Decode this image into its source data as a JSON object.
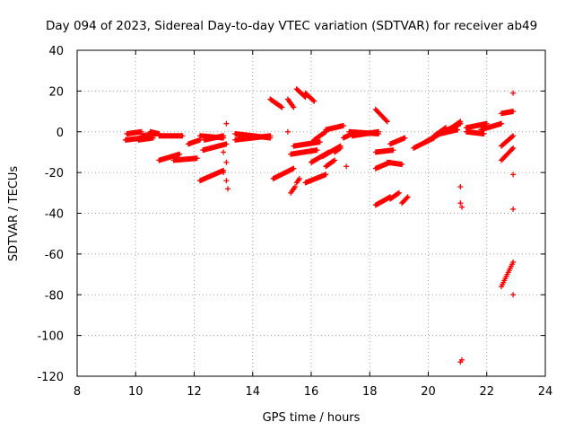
{
  "chart_data": {
    "type": "scatter",
    "title": "Day 094 of 2023, Sidereal Day-to-day VTEC variation (SDTVAR) for receiver ab49",
    "xlabel": "GPS time / hours",
    "ylabel": "SDTVAR / TECUs",
    "xlim": [
      8,
      24
    ],
    "ylim": [
      -120,
      40
    ],
    "xticks": [
      8,
      10,
      12,
      14,
      16,
      18,
      20,
      22,
      24
    ],
    "yticks": [
      -120,
      -100,
      -80,
      -60,
      -40,
      -20,
      0,
      20,
      40
    ],
    "grid": true,
    "marker": "+",
    "color": "#ff0000",
    "series_segments": [
      {
        "x0": 9.65,
        "y0": -4,
        "x1": 10.3,
        "y1": -3
      },
      {
        "x0": 9.7,
        "y0": -1,
        "x1": 10.2,
        "y1": 0
      },
      {
        "x0": 10.1,
        "y0": -4,
        "x1": 10.6,
        "y1": -3
      },
      {
        "x0": 10.2,
        "y0": -2,
        "x1": 10.7,
        "y1": -1
      },
      {
        "x0": 10.5,
        "y0": 0,
        "x1": 10.8,
        "y1": -1
      },
      {
        "x0": 10.8,
        "y0": -2,
        "x1": 11.6,
        "y1": -2
      },
      {
        "x0": 10.8,
        "y0": -14,
        "x1": 11.5,
        "y1": -11
      },
      {
        "x0": 11.3,
        "y0": -14,
        "x1": 12.1,
        "y1": -13
      },
      {
        "x0": 11.8,
        "y0": -6,
        "x1": 12.2,
        "y1": -4
      },
      {
        "x0": 12.2,
        "y0": -2,
        "x1": 13.0,
        "y1": -3
      },
      {
        "x0": 12.2,
        "y0": -24,
        "x1": 13.0,
        "y1": -19
      },
      {
        "x0": 12.3,
        "y0": -9,
        "x1": 13.1,
        "y1": -6
      },
      {
        "x0": 12.35,
        "y0": -4,
        "x1": 13.0,
        "y1": -2
      },
      {
        "x0": 13.4,
        "y0": -1,
        "x1": 14.6,
        "y1": -3
      },
      {
        "x0": 13.4,
        "y0": -4,
        "x1": 14.6,
        "y1": -2
      },
      {
        "x0": 14.6,
        "y0": 16,
        "x1": 15.0,
        "y1": 12
      },
      {
        "x0": 15.2,
        "y0": 16,
        "x1": 15.4,
        "y1": 12
      },
      {
        "x0": 15.5,
        "y0": 21,
        "x1": 15.8,
        "y1": 17
      },
      {
        "x0": 15.8,
        "y0": 19,
        "x1": 16.1,
        "y1": 15
      },
      {
        "x0": 14.7,
        "y0": -23,
        "x1": 15.4,
        "y1": -18
      },
      {
        "x0": 15.3,
        "y0": -30,
        "x1": 15.45,
        "y1": -27
      },
      {
        "x0": 15.5,
        "y0": -25,
        "x1": 15.6,
        "y1": -23
      },
      {
        "x0": 15.8,
        "y0": -25,
        "x1": 16.5,
        "y1": -21
      },
      {
        "x0": 15.3,
        "y0": -11,
        "x1": 16.2,
        "y1": -9
      },
      {
        "x0": 15.4,
        "y0": -7,
        "x1": 16.3,
        "y1": -5
      },
      {
        "x0": 16.0,
        "y0": -15,
        "x1": 16.6,
        "y1": -10
      },
      {
        "x0": 16.1,
        "y0": -4,
        "x1": 16.5,
        "y1": 0
      },
      {
        "x0": 16.4,
        "y0": -12,
        "x1": 17.0,
        "y1": -7
      },
      {
        "x0": 16.5,
        "y0": -17,
        "x1": 16.8,
        "y1": -14
      },
      {
        "x0": 16.8,
        "y0": -10,
        "x1": 17.0,
        "y1": -8
      },
      {
        "x0": 16.5,
        "y0": 1,
        "x1": 17.1,
        "y1": 3
      },
      {
        "x0": 17.1,
        "y0": -3,
        "x1": 17.4,
        "y1": -1
      },
      {
        "x0": 17.3,
        "y0": 0,
        "x1": 18.3,
        "y1": -1
      },
      {
        "x0": 17.4,
        "y0": -2,
        "x1": 18.3,
        "y1": 0
      },
      {
        "x0": 18.2,
        "y0": 11,
        "x1": 18.6,
        "y1": 5
      },
      {
        "x0": 18.2,
        "y0": -10,
        "x1": 18.8,
        "y1": -9
      },
      {
        "x0": 18.2,
        "y0": -18,
        "x1": 18.7,
        "y1": -15
      },
      {
        "x0": 18.6,
        "y0": -15,
        "x1": 19.1,
        "y1": -16
      },
      {
        "x0": 18.2,
        "y0": -36,
        "x1": 18.7,
        "y1": -32
      },
      {
        "x0": 18.7,
        "y0": -33,
        "x1": 19.0,
        "y1": -30
      },
      {
        "x0": 19.1,
        "y0": -35,
        "x1": 19.3,
        "y1": -32
      },
      {
        "x0": 18.7,
        "y0": -6,
        "x1": 19.2,
        "y1": -3
      },
      {
        "x0": 19.5,
        "y0": -8,
        "x1": 20.2,
        "y1": -3
      },
      {
        "x0": 19.9,
        "y0": -5,
        "x1": 20.4,
        "y1": -1
      },
      {
        "x0": 20.2,
        "y0": -2,
        "x1": 20.6,
        "y1": 2
      },
      {
        "x0": 20.4,
        "y0": -1,
        "x1": 21.0,
        "y1": 1
      },
      {
        "x0": 20.5,
        "y0": 0,
        "x1": 21.1,
        "y1": 4
      },
      {
        "x0": 20.8,
        "y0": 2,
        "x1": 21.1,
        "y1": 5
      },
      {
        "x0": 21.3,
        "y0": 0,
        "x1": 21.9,
        "y1": -1
      },
      {
        "x0": 21.3,
        "y0": 2,
        "x1": 22.0,
        "y1": 4
      },
      {
        "x0": 21.8,
        "y0": 1,
        "x1": 22.5,
        "y1": 4
      },
      {
        "x0": 22.5,
        "y0": 9,
        "x1": 22.9,
        "y1": 10
      },
      {
        "x0": 22.5,
        "y0": -7,
        "x1": 22.9,
        "y1": -2
      },
      {
        "x0": 22.5,
        "y0": -14,
        "x1": 22.9,
        "y1": -8
      },
      {
        "x0": 22.5,
        "y0": -76,
        "x1": 22.9,
        "y1": -64
      }
    ],
    "isolated_points": [
      {
        "x": 13.1,
        "y": 4
      },
      {
        "x": 13.0,
        "y": -10
      },
      {
        "x": 13.1,
        "y": -15
      },
      {
        "x": 13.0,
        "y": -20
      },
      {
        "x": 13.1,
        "y": -24
      },
      {
        "x": 13.15,
        "y": -28
      },
      {
        "x": 15.2,
        "y": 0
      },
      {
        "x": 17.2,
        "y": -17
      },
      {
        "x": 21.1,
        "y": -27
      },
      {
        "x": 21.1,
        "y": -35
      },
      {
        "x": 21.15,
        "y": -37
      },
      {
        "x": 21.1,
        "y": -113
      },
      {
        "x": 21.15,
        "y": -112
      },
      {
        "x": 22.9,
        "y": 19
      },
      {
        "x": 22.9,
        "y": -21
      },
      {
        "x": 22.9,
        "y": -38
      },
      {
        "x": 22.9,
        "y": -80
      }
    ]
  }
}
